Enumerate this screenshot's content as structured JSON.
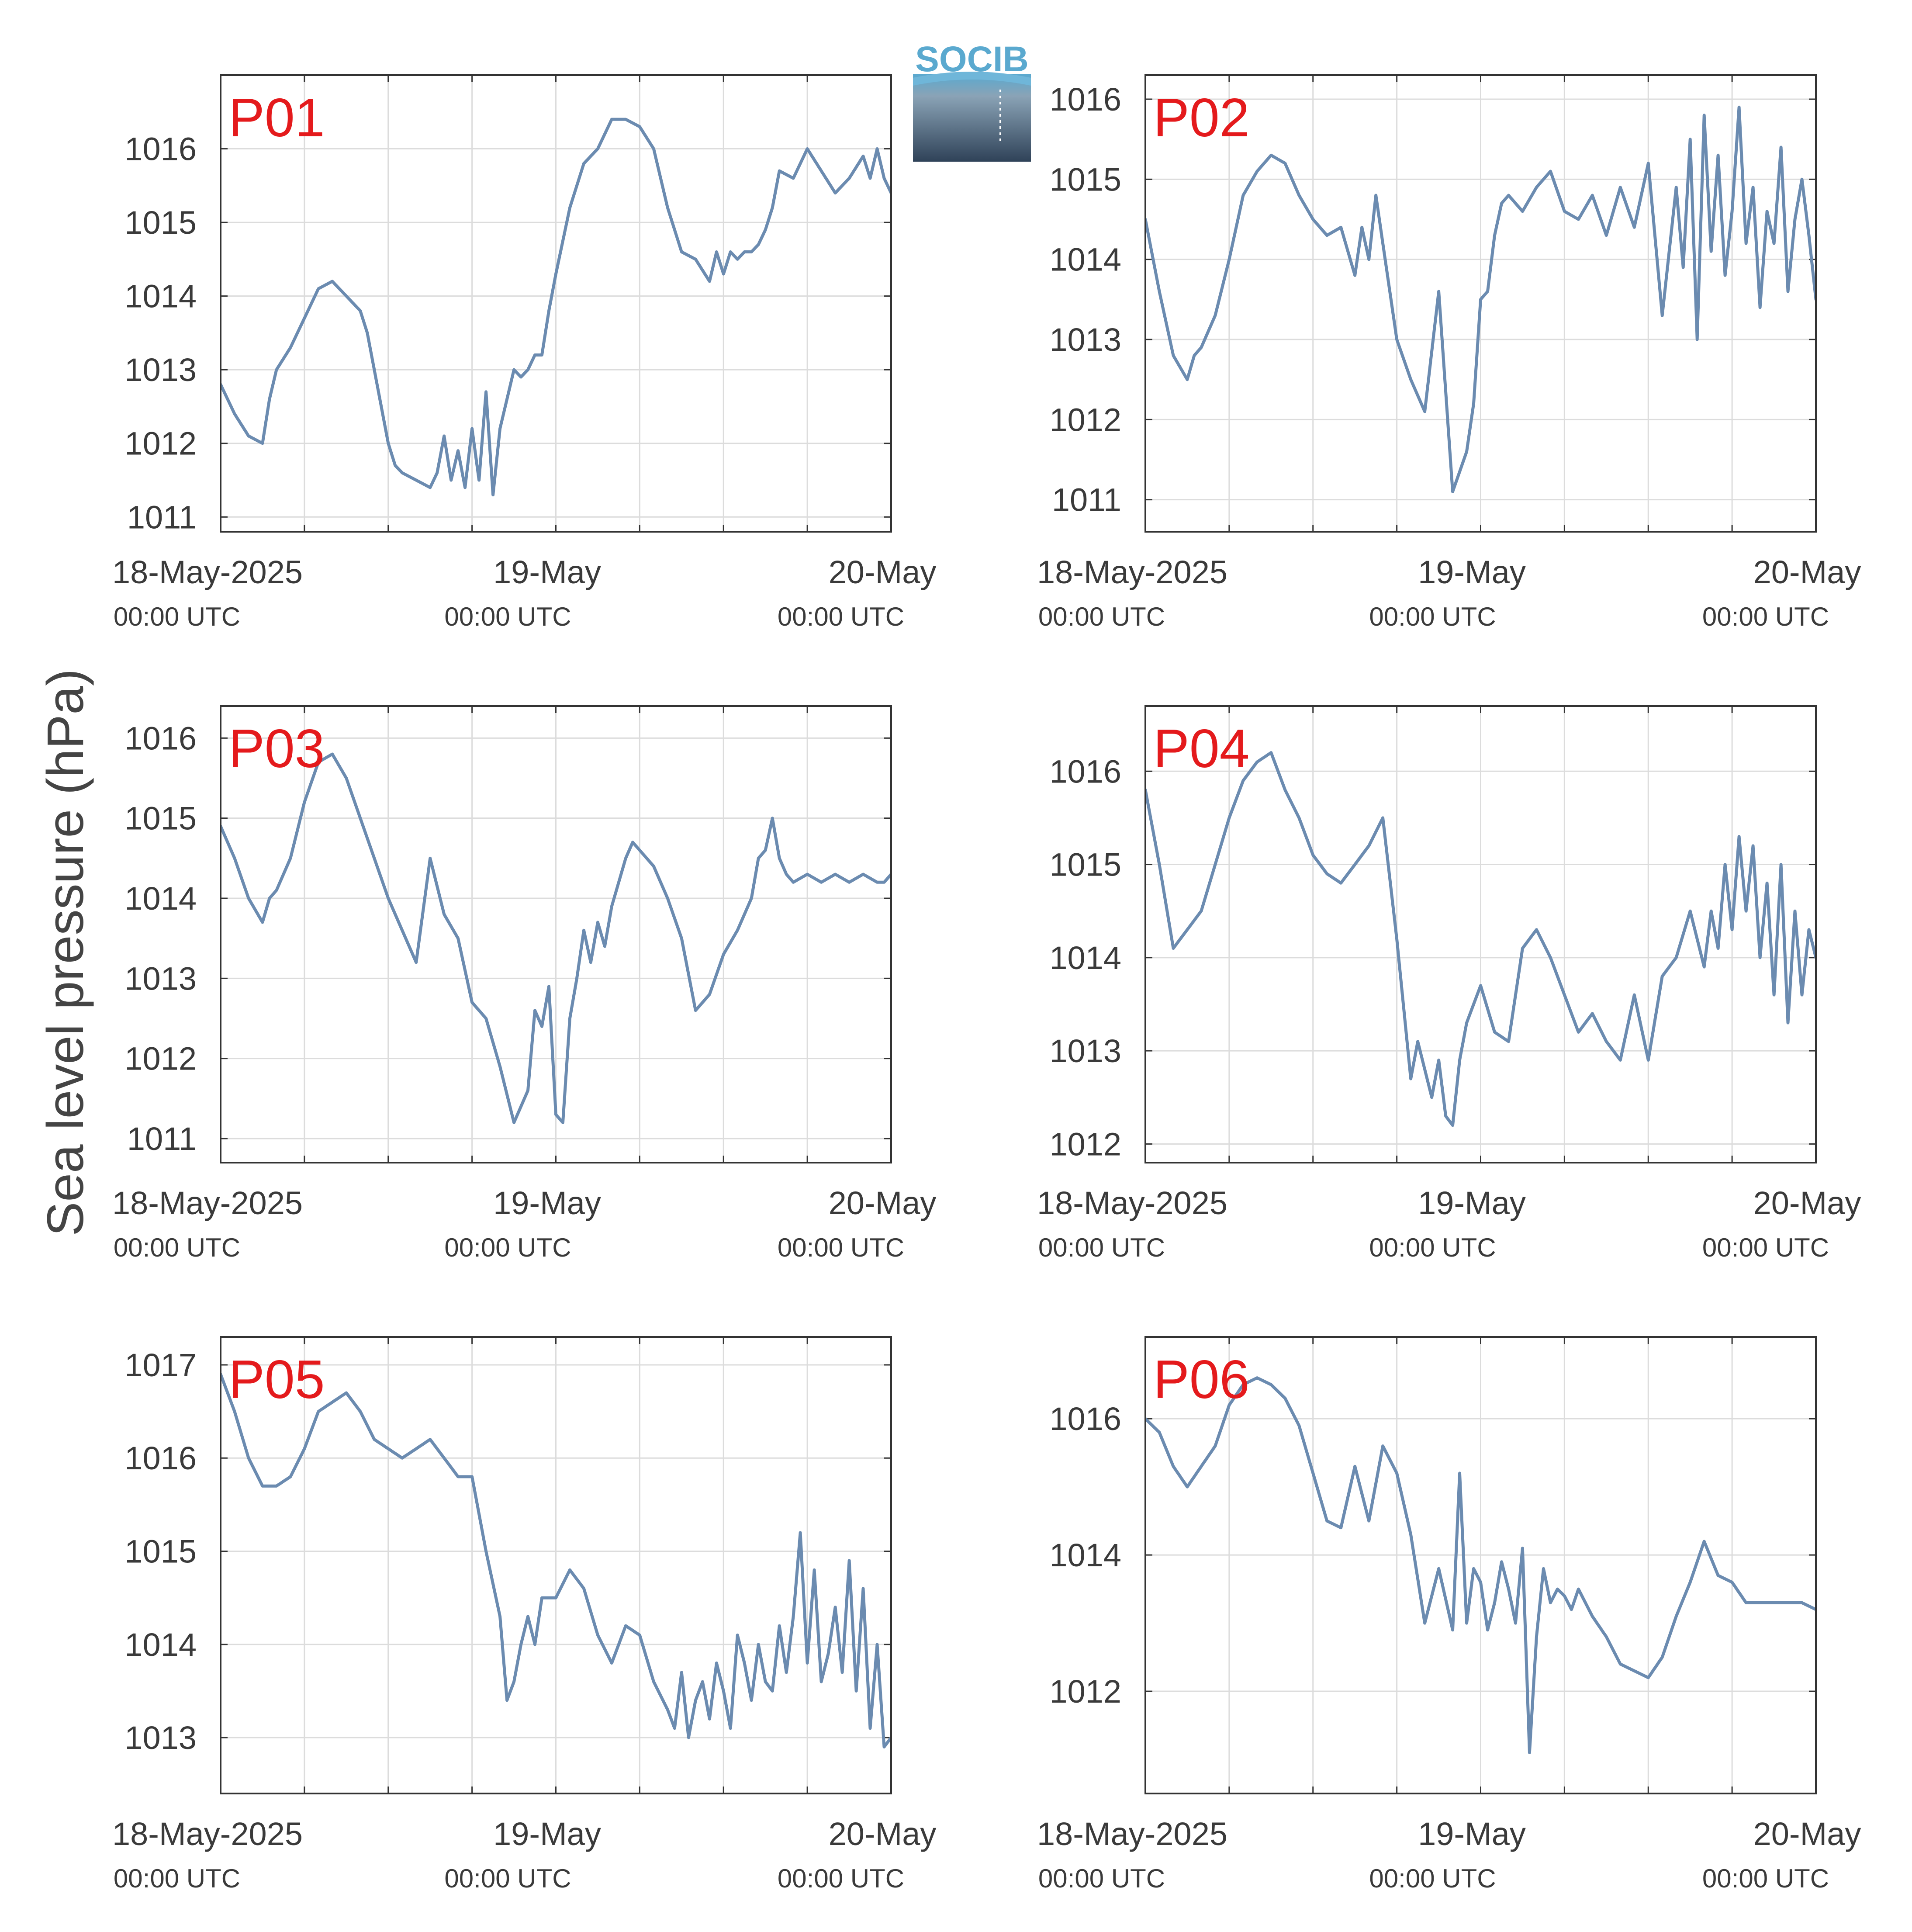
{
  "figure": {
    "ylabel": "Sea level pressure (hPa)",
    "logo_text": "SOCIB",
    "line_color": "#6b8bb0",
    "label_color": "#e41a1c",
    "grid": true
  },
  "chart_data": [
    {
      "type": "line",
      "label": "P01",
      "xlim": [
        "2025-05-18T00:00",
        "2025-05-20T00:00"
      ],
      "xticks": [
        {
          "main": "18-May-2025",
          "sub": "00:00 UTC"
        },
        {
          "main": "19-May",
          "sub": "00:00 UTC"
        },
        {
          "main": "20-May",
          "sub": "00:00 UTC"
        }
      ],
      "ylim": [
        1010.8,
        1017.0
      ],
      "yticks": [
        1011,
        1012,
        1013,
        1014,
        1015,
        1016
      ],
      "series": [
        {
          "x_hours": [
            0,
            1,
            2,
            3,
            3.5,
            4,
            5,
            6,
            7,
            8,
            9,
            10,
            10.5,
            11,
            12,
            12.5,
            13,
            14,
            15,
            15.5,
            16,
            16.5,
            17,
            17.5,
            18,
            18.5,
            19,
            19.5,
            20,
            20.5,
            21,
            21.5,
            22,
            22.5,
            23,
            23.5,
            24,
            25,
            26,
            27,
            28,
            29,
            30,
            31,
            32,
            33,
            34,
            35,
            35.5,
            36,
            36.5,
            37,
            37.5,
            38,
            38.5,
            39,
            39.5,
            40,
            41,
            42,
            43,
            44,
            45,
            46,
            46.5,
            47,
            47.5,
            48
          ],
          "values": [
            1012.8,
            1012.4,
            1012.1,
            1012.0,
            1012.6,
            1013.0,
            1013.3,
            1013.7,
            1014.1,
            1014.2,
            1014.0,
            1013.8,
            1013.5,
            1013.0,
            1012.0,
            1011.7,
            1011.6,
            1011.5,
            1011.4,
            1011.6,
            1012.1,
            1011.5,
            1011.9,
            1011.4,
            1012.2,
            1011.5,
            1012.7,
            1011.3,
            1012.2,
            1012.6,
            1013.0,
            1012.9,
            1013.0,
            1013.2,
            1013.2,
            1013.8,
            1014.3,
            1015.2,
            1015.8,
            1016.0,
            1016.4,
            1016.4,
            1016.3,
            1016.0,
            1015.2,
            1014.6,
            1014.5,
            1014.2,
            1014.6,
            1014.3,
            1014.6,
            1014.5,
            1014.6,
            1014.6,
            1014.7,
            1014.9,
            1015.2,
            1015.7,
            1015.6,
            1016.0,
            1015.7,
            1015.4,
            1015.6,
            1015.9,
            1015.6,
            1016.0,
            1015.6,
            1015.4
          ]
        }
      ]
    },
    {
      "type": "line",
      "label": "P02",
      "xlim": [
        "2025-05-18T00:00",
        "2025-05-20T00:00"
      ],
      "xticks": [
        {
          "main": "18-May-2025",
          "sub": "00:00 UTC"
        },
        {
          "main": "19-May",
          "sub": "00:00 UTC"
        },
        {
          "main": "20-May",
          "sub": "00:00 UTC"
        }
      ],
      "ylim": [
        1010.6,
        1016.3
      ],
      "yticks": [
        1011,
        1012,
        1013,
        1014,
        1015,
        1016
      ],
      "series": [
        {
          "x_hours": [
            0,
            1,
            2,
            3,
            3.5,
            4,
            5,
            6,
            7,
            8,
            9,
            10,
            11,
            12,
            13,
            14,
            15,
            15.5,
            16,
            16.5,
            17,
            18,
            19,
            20,
            21,
            22,
            23,
            23.5,
            24,
            24.5,
            25,
            25.5,
            26,
            26.5,
            27,
            28,
            29,
            30,
            31,
            32,
            33,
            34,
            35,
            36,
            37,
            38,
            38.5,
            39,
            39.5,
            40,
            40.5,
            41,
            41.5,
            42,
            42.5,
            43,
            43.5,
            44,
            44.5,
            45,
            45.5,
            46,
            46.5,
            47,
            47.5,
            48
          ],
          "values": [
            1014.5,
            1013.6,
            1012.8,
            1012.5,
            1012.8,
            1012.9,
            1013.3,
            1014.0,
            1014.8,
            1015.1,
            1015.3,
            1015.2,
            1014.8,
            1014.5,
            1014.3,
            1014.4,
            1013.8,
            1014.4,
            1014.0,
            1014.8,
            1014.2,
            1013.0,
            1012.5,
            1012.1,
            1013.6,
            1011.1,
            1011.6,
            1012.2,
            1013.5,
            1013.6,
            1014.3,
            1014.7,
            1014.8,
            1014.7,
            1014.6,
            1014.9,
            1015.1,
            1014.6,
            1014.5,
            1014.8,
            1014.3,
            1014.9,
            1014.4,
            1015.2,
            1013.3,
            1014.9,
            1013.9,
            1015.5,
            1013.0,
            1015.8,
            1014.1,
            1015.3,
            1013.8,
            1014.6,
            1015.9,
            1014.2,
            1014.9,
            1013.4,
            1014.6,
            1014.2,
            1015.4,
            1013.6,
            1014.5,
            1015.0,
            1014.3,
            1013.5
          ]
        }
      ]
    },
    {
      "type": "line",
      "label": "P03",
      "xlim": [
        "2025-05-18T00:00",
        "2025-05-20T00:00"
      ],
      "xticks": [
        {
          "main": "18-May-2025",
          "sub": "00:00 UTC"
        },
        {
          "main": "19-May",
          "sub": "00:00 UTC"
        },
        {
          "main": "20-May",
          "sub": "00:00 UTC"
        }
      ],
      "ylim": [
        1010.7,
        1016.4
      ],
      "yticks": [
        1011,
        1012,
        1013,
        1014,
        1015,
        1016
      ],
      "series": [
        {
          "x_hours": [
            0,
            1,
            2,
            3,
            3.5,
            4,
            5,
            6,
            7,
            8,
            9,
            10,
            11,
            12,
            13,
            14,
            15,
            16,
            17,
            18,
            19,
            20,
            21,
            22,
            22.5,
            23,
            23.5,
            24,
            24.5,
            25,
            25.5,
            26,
            26.5,
            27,
            27.5,
            28,
            28.5,
            29,
            29.5,
            30,
            31,
            32,
            33,
            34,
            35,
            36,
            37,
            38,
            38.5,
            39,
            39.5,
            40,
            40.5,
            41,
            42,
            43,
            44,
            45,
            46,
            47,
            47.5,
            48
          ],
          "values": [
            1014.9,
            1014.5,
            1014.0,
            1013.7,
            1014.0,
            1014.1,
            1014.5,
            1015.2,
            1015.7,
            1015.8,
            1015.5,
            1015.0,
            1014.5,
            1014.0,
            1013.6,
            1013.2,
            1014.5,
            1013.8,
            1013.5,
            1012.7,
            1012.5,
            1011.9,
            1011.2,
            1011.6,
            1012.6,
            1012.4,
            1012.9,
            1011.3,
            1011.2,
            1012.5,
            1013.0,
            1013.6,
            1013.2,
            1013.7,
            1013.4,
            1013.9,
            1014.2,
            1014.5,
            1014.7,
            1014.6,
            1014.4,
            1014.0,
            1013.5,
            1012.6,
            1012.8,
            1013.3,
            1013.6,
            1014.0,
            1014.5,
            1014.6,
            1015.0,
            1014.5,
            1014.3,
            1014.2,
            1014.3,
            1014.2,
            1014.3,
            1014.2,
            1014.3,
            1014.2,
            1014.2,
            1014.3
          ]
        }
      ]
    },
    {
      "type": "line",
      "label": "P04",
      "xlim": [
        "2025-05-18T00:00",
        "2025-05-20T00:00"
      ],
      "xticks": [
        {
          "main": "18-May-2025",
          "sub": "00:00 UTC"
        },
        {
          "main": "19-May",
          "sub": "00:00 UTC"
        },
        {
          "main": "20-May",
          "sub": "00:00 UTC"
        }
      ],
      "ylim": [
        1011.8,
        1016.7
      ],
      "yticks": [
        1012,
        1013,
        1014,
        1015,
        1016
      ],
      "series": [
        {
          "x_hours": [
            0,
            1,
            2,
            3,
            4,
            5,
            6,
            7,
            8,
            9,
            10,
            11,
            12,
            13,
            14,
            15,
            16,
            17,
            18,
            19,
            19.5,
            20,
            20.5,
            21,
            21.5,
            22,
            22.5,
            23,
            23.5,
            24,
            25,
            26,
            27,
            28,
            29,
            30,
            31,
            32,
            33,
            34,
            35,
            36,
            37,
            38,
            39,
            40,
            40.5,
            41,
            41.5,
            42,
            42.5,
            43,
            43.5,
            44,
            44.5,
            45,
            45.5,
            46,
            46.5,
            47,
            47.5,
            48
          ],
          "values": [
            1015.8,
            1015.0,
            1014.1,
            1014.3,
            1014.5,
            1015.0,
            1015.5,
            1015.9,
            1016.1,
            1016.2,
            1015.8,
            1015.5,
            1015.1,
            1014.9,
            1014.8,
            1015.0,
            1015.2,
            1015.5,
            1014.2,
            1012.7,
            1013.1,
            1012.8,
            1012.5,
            1012.9,
            1012.3,
            1012.2,
            1012.9,
            1013.3,
            1013.5,
            1013.7,
            1013.2,
            1013.1,
            1014.1,
            1014.3,
            1014.0,
            1013.6,
            1013.2,
            1013.4,
            1013.1,
            1012.9,
            1013.6,
            1012.9,
            1013.8,
            1014.0,
            1014.5,
            1013.9,
            1014.5,
            1014.1,
            1015.0,
            1014.3,
            1015.3,
            1014.5,
            1015.2,
            1014.0,
            1014.8,
            1013.6,
            1015.0,
            1013.3,
            1014.5,
            1013.6,
            1014.3,
            1014.0
          ]
        }
      ]
    },
    {
      "type": "line",
      "label": "P05",
      "xlim": [
        "2025-05-18T00:00",
        "2025-05-20T00:00"
      ],
      "xticks": [
        {
          "main": "18-May-2025",
          "sub": "00:00 UTC"
        },
        {
          "main": "19-May",
          "sub": "00:00 UTC"
        },
        {
          "main": "20-May",
          "sub": "00:00 UTC"
        }
      ],
      "ylim": [
        1012.4,
        1017.3
      ],
      "yticks": [
        1013,
        1014,
        1015,
        1016,
        1017
      ],
      "series": [
        {
          "x_hours": [
            0,
            1,
            2,
            3,
            4,
            5,
            6,
            7,
            8,
            9,
            10,
            11,
            12,
            13,
            14,
            15,
            16,
            17,
            18,
            19,
            20,
            20.5,
            21,
            21.5,
            22,
            22.5,
            23,
            24,
            25,
            26,
            27,
            28,
            29,
            30,
            31,
            32,
            32.5,
            33,
            33.5,
            34,
            34.5,
            35,
            35.5,
            36,
            36.5,
            37,
            37.5,
            38,
            38.5,
            39,
            39.5,
            40,
            40.5,
            41,
            41.5,
            42,
            42.5,
            43,
            43.5,
            44,
            44.5,
            45,
            45.5,
            46,
            46.5,
            47,
            47.5,
            48
          ],
          "values": [
            1016.9,
            1016.5,
            1016.0,
            1015.7,
            1015.7,
            1015.8,
            1016.1,
            1016.5,
            1016.6,
            1016.7,
            1016.5,
            1016.2,
            1016.1,
            1016.0,
            1016.1,
            1016.2,
            1016.0,
            1015.8,
            1015.8,
            1015.0,
            1014.3,
            1013.4,
            1013.6,
            1014.0,
            1014.3,
            1014.0,
            1014.5,
            1014.5,
            1014.8,
            1014.6,
            1014.1,
            1013.8,
            1014.2,
            1014.1,
            1013.6,
            1013.3,
            1013.1,
            1013.7,
            1013.0,
            1013.4,
            1013.6,
            1013.2,
            1013.8,
            1013.5,
            1013.1,
            1014.1,
            1013.8,
            1013.4,
            1014.0,
            1013.6,
            1013.5,
            1014.2,
            1013.7,
            1014.3,
            1015.2,
            1013.8,
            1014.8,
            1013.6,
            1013.9,
            1014.4,
            1013.7,
            1014.9,
            1013.5,
            1014.6,
            1013.1,
            1014.0,
            1012.9,
            1013.0
          ]
        }
      ]
    },
    {
      "type": "line",
      "label": "P06",
      "xlim": [
        "2025-05-18T00:00",
        "2025-05-20T00:00"
      ],
      "xticks": [
        {
          "main": "18-May-2025",
          "sub": "00:00 UTC"
        },
        {
          "main": "19-May",
          "sub": "00:00 UTC"
        },
        {
          "main": "20-May",
          "sub": "00:00 UTC"
        }
      ],
      "ylim": [
        1010.5,
        1017.2
      ],
      "yticks": [
        1012,
        1014,
        1016
      ],
      "series": [
        {
          "x_hours": [
            0,
            1,
            2,
            3,
            4,
            5,
            6,
            7,
            8,
            9,
            10,
            11,
            12,
            13,
            14,
            15,
            16,
            17,
            18,
            19,
            20,
            21,
            22,
            22.5,
            23,
            23.5,
            24,
            24.5,
            25,
            25.5,
            26,
            26.5,
            27,
            27.5,
            28,
            28.5,
            29,
            29.5,
            30,
            30.5,
            31,
            32,
            33,
            34,
            35,
            36,
            37,
            38,
            39,
            40,
            41,
            42,
            43,
            44,
            45,
            46,
            47,
            48
          ],
          "values": [
            1016.0,
            1015.8,
            1015.3,
            1015.0,
            1015.3,
            1015.6,
            1016.2,
            1016.5,
            1016.6,
            1016.5,
            1016.3,
            1015.9,
            1015.2,
            1014.5,
            1014.4,
            1015.3,
            1014.5,
            1015.6,
            1015.2,
            1014.3,
            1013.0,
            1013.8,
            1012.9,
            1015.2,
            1013.0,
            1013.8,
            1013.6,
            1012.9,
            1013.3,
            1013.9,
            1013.5,
            1013.0,
            1014.1,
            1011.1,
            1012.8,
            1013.8,
            1013.3,
            1013.5,
            1013.4,
            1013.2,
            1013.5,
            1013.1,
            1012.8,
            1012.4,
            1012.3,
            1012.2,
            1012.5,
            1013.1,
            1013.6,
            1014.2,
            1013.7,
            1013.6,
            1013.3,
            1013.3,
            1013.3,
            1013.3,
            1013.3,
            1013.2
          ]
        }
      ]
    }
  ]
}
